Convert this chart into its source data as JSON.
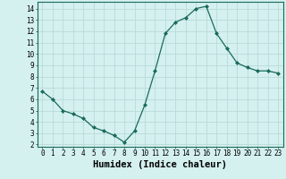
{
  "x": [
    0,
    1,
    2,
    3,
    4,
    5,
    6,
    7,
    8,
    9,
    10,
    11,
    12,
    13,
    14,
    15,
    16,
    17,
    18,
    19,
    20,
    21,
    22,
    23
  ],
  "y": [
    6.7,
    6.0,
    5.0,
    4.7,
    4.3,
    3.5,
    3.2,
    2.8,
    2.2,
    3.2,
    5.5,
    8.5,
    11.8,
    12.8,
    13.2,
    14.0,
    14.2,
    11.8,
    10.5,
    9.2,
    8.8,
    8.5,
    8.5,
    8.3
  ],
  "line_color": "#1a6b5a",
  "marker": "D",
  "marker_size": 2,
  "bg_color": "#d4f0ef",
  "grid_color": "#b8dbd8",
  "xlabel": "Humidex (Indice chaleur)",
  "xlim": [
    -0.5,
    23.5
  ],
  "ylim": [
    1.8,
    14.6
  ],
  "xticks": [
    0,
    1,
    2,
    3,
    4,
    5,
    6,
    7,
    8,
    9,
    10,
    11,
    12,
    13,
    14,
    15,
    16,
    17,
    18,
    19,
    20,
    21,
    22,
    23
  ],
  "yticks": [
    2,
    3,
    4,
    5,
    6,
    7,
    8,
    9,
    10,
    11,
    12,
    13,
    14
  ],
  "tick_fontsize": 5.5,
  "xlabel_fontsize": 7.5
}
